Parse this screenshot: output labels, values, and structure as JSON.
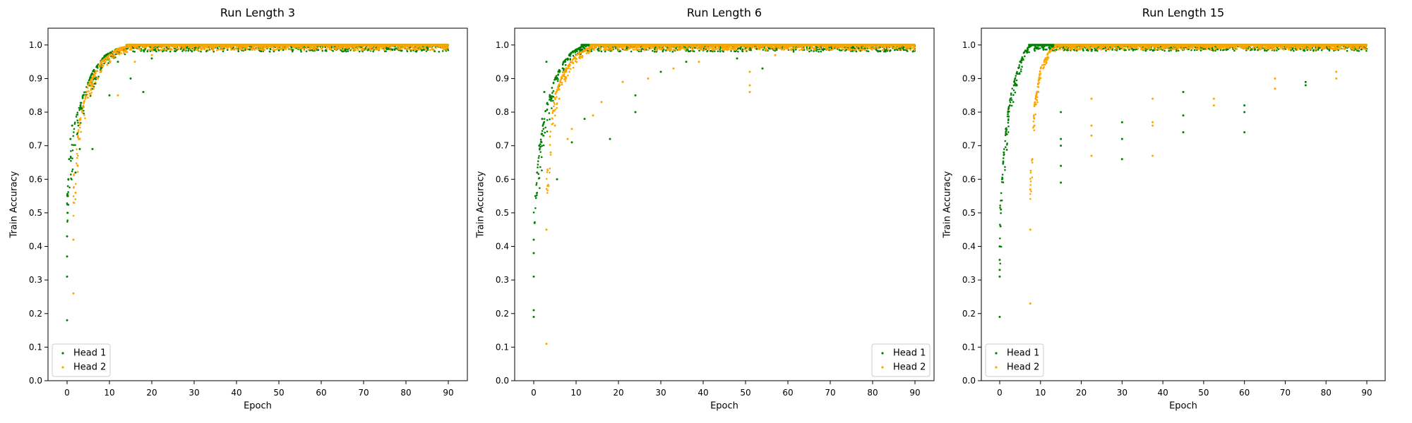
{
  "figure": {
    "colors": {
      "head1": "#008000",
      "head2": "#ffa500"
    }
  },
  "chart_data": [
    {
      "type": "scatter",
      "title": "Run Length 3",
      "xlabel": "Epoch",
      "ylabel": "Train Accuracy",
      "xlim": [
        -4.5,
        94.5
      ],
      "ylim": [
        0.0,
        1.05
      ],
      "xticks": [
        0,
        10,
        20,
        30,
        40,
        50,
        60,
        70,
        80,
        90
      ],
      "yticks": [
        0.0,
        0.1,
        0.2,
        0.3,
        0.4,
        0.5,
        0.6,
        0.7,
        0.8,
        0.9,
        1.0
      ],
      "legend": "lower-left",
      "series": [
        {
          "name": "Head 1",
          "color": "#008000",
          "points": [
            [
              0,
              0.18
            ],
            [
              0,
              0.31
            ],
            [
              0,
              0.37
            ],
            [
              0,
              0.43
            ],
            [
              0.1,
              0.5
            ],
            [
              0.2,
              0.55
            ],
            [
              0.3,
              0.6
            ],
            [
              0.5,
              0.66
            ],
            [
              0.8,
              0.72
            ],
            [
              1.2,
              0.76
            ],
            [
              2,
              0.62
            ],
            [
              3,
              0.69
            ],
            [
              3.5,
              0.81
            ],
            [
              4.5,
              0.86
            ],
            [
              6,
              0.69
            ],
            [
              6.5,
              0.9
            ],
            [
              8,
              0.93
            ],
            [
              10,
              0.85
            ],
            [
              12,
              0.95
            ],
            [
              15,
              0.9
            ],
            [
              18,
              0.86
            ],
            [
              20,
              0.96
            ],
            [
              24,
              0.99
            ]
          ],
          "fill": {
            "from": 0,
            "to": 90,
            "curve": [
              [
                0,
                0.55
              ],
              [
                1,
                0.7
              ],
              [
                2,
                0.78
              ],
              [
                4,
                0.86
              ],
              [
                6,
                0.92
              ],
              [
                9,
                0.97
              ],
              [
                12,
                0.99
              ],
              [
                16,
                1.0
              ],
              [
                90,
                1.0
              ]
            ],
            "spread": 0.1
          }
        },
        {
          "name": "Head 2",
          "color": "#ffa500",
          "points": [
            [
              1.5,
              0.26
            ],
            [
              1.5,
              0.42
            ],
            [
              2,
              0.56
            ],
            [
              2.5,
              0.64
            ],
            [
              3,
              0.72
            ],
            [
              4,
              0.83
            ],
            [
              6,
              0.88
            ],
            [
              8,
              0.92
            ],
            [
              12,
              0.85
            ],
            [
              16,
              0.95
            ],
            [
              20,
              0.97
            ],
            [
              26,
              0.99
            ]
          ],
          "fill": {
            "from": 1.5,
            "to": 90,
            "curve": [
              [
                1.5,
                0.6
              ],
              [
                3,
                0.78
              ],
              [
                5,
                0.88
              ],
              [
                8,
                0.95
              ],
              [
                12,
                0.99
              ],
              [
                16,
                1.0
              ],
              [
                90,
                1.0
              ]
            ],
            "spread": 0.08
          }
        }
      ]
    },
    {
      "type": "scatter",
      "title": "Run Length 6",
      "xlabel": "Epoch",
      "ylabel": "Train Accuracy",
      "xlim": [
        -4.5,
        94.5
      ],
      "ylim": [
        0.0,
        1.05
      ],
      "xticks": [
        0,
        10,
        20,
        30,
        40,
        50,
        60,
        70,
        80,
        90
      ],
      "yticks": [
        0.0,
        0.1,
        0.2,
        0.3,
        0.4,
        0.5,
        0.6,
        0.7,
        0.8,
        0.9,
        1.0
      ],
      "legend": "lower-right",
      "series": [
        {
          "name": "Head 1",
          "color": "#008000",
          "points": [
            [
              0,
              0.19
            ],
            [
              0,
              0.21
            ],
            [
              0,
              0.31
            ],
            [
              0,
              0.38
            ],
            [
              0,
              0.42
            ],
            [
              0.2,
              0.47
            ],
            [
              0.4,
              0.55
            ],
            [
              0.8,
              0.62
            ],
            [
              1.3,
              0.7
            ],
            [
              2,
              0.78
            ],
            [
              2.5,
              0.86
            ],
            [
              3,
              0.95
            ],
            [
              5.5,
              0.6
            ],
            [
              9,
              0.71
            ],
            [
              12,
              0.78
            ],
            [
              18,
              0.72
            ],
            [
              24,
              0.8
            ],
            [
              24,
              0.85
            ],
            [
              30,
              0.92
            ],
            [
              36,
              0.95
            ],
            [
              48,
              0.96
            ],
            [
              54,
              0.93
            ]
          ],
          "fill": {
            "from": 0,
            "to": 90,
            "curve": [
              [
                0,
                0.5
              ],
              [
                1,
                0.65
              ],
              [
                2,
                0.75
              ],
              [
                3,
                0.82
              ],
              [
                5,
                0.9
              ],
              [
                7,
                0.95
              ],
              [
                9,
                0.98
              ],
              [
                12,
                1.0
              ],
              [
                90,
                1.0
              ]
            ],
            "spread": 0.1
          }
        },
        {
          "name": "Head 2",
          "color": "#ffa500",
          "points": [
            [
              3,
              0.11
            ],
            [
              3,
              0.45
            ],
            [
              3.5,
              0.58
            ],
            [
              4,
              0.68
            ],
            [
              5,
              0.76
            ],
            [
              6,
              0.84
            ],
            [
              8,
              0.72
            ],
            [
              9,
              0.75
            ],
            [
              14,
              0.79
            ],
            [
              16,
              0.83
            ],
            [
              21,
              0.89
            ],
            [
              27,
              0.9
            ],
            [
              33,
              0.93
            ],
            [
              39,
              0.95
            ],
            [
              51,
              0.86
            ],
            [
              51,
              0.88
            ],
            [
              51,
              0.92
            ],
            [
              57,
              0.97
            ]
          ],
          "fill": {
            "from": 3,
            "to": 90,
            "curve": [
              [
                3,
                0.6
              ],
              [
                4,
                0.75
              ],
              [
                5,
                0.85
              ],
              [
                7,
                0.92
              ],
              [
                10,
                0.97
              ],
              [
                14,
                1.0
              ],
              [
                90,
                1.0
              ]
            ],
            "spread": 0.08
          }
        }
      ]
    },
    {
      "type": "scatter",
      "title": "Run Length 15",
      "xlabel": "Epoch",
      "ylabel": "Train Accuracy",
      "xlim": [
        -4.5,
        94.5
      ],
      "ylim": [
        0.0,
        1.05
      ],
      "xticks": [
        0,
        10,
        20,
        30,
        40,
        50,
        60,
        70,
        80,
        90
      ],
      "yticks": [
        0.0,
        0.1,
        0.2,
        0.3,
        0.4,
        0.5,
        0.6,
        0.7,
        0.8,
        0.9,
        1.0
      ],
      "legend": "lower-left",
      "series": [
        {
          "name": "Head 1",
          "color": "#008000",
          "points": [
            [
              0,
              0.19
            ],
            [
              0,
              0.31
            ],
            [
              0,
              0.33
            ],
            [
              0,
              0.36
            ],
            [
              0,
              0.4
            ],
            [
              0.2,
              0.46
            ],
            [
              0.3,
              0.51
            ],
            [
              0.6,
              0.6
            ],
            [
              1,
              0.68
            ],
            [
              1.5,
              0.75
            ],
            [
              2.5,
              0.82
            ],
            [
              3.5,
              0.88
            ],
            [
              5,
              0.95
            ],
            [
              15,
              0.59
            ],
            [
              15,
              0.64
            ],
            [
              15,
              0.7
            ],
            [
              15,
              0.72
            ],
            [
              15,
              0.8
            ],
            [
              30,
              0.66
            ],
            [
              30,
              0.72
            ],
            [
              30,
              0.77
            ],
            [
              45,
              0.74
            ],
            [
              45,
              0.79
            ],
            [
              45,
              0.86
            ],
            [
              60,
              0.74
            ],
            [
              60,
              0.8
            ],
            [
              60,
              0.82
            ],
            [
              75,
              0.88
            ],
            [
              75,
              0.89
            ]
          ],
          "fill": {
            "from": 0,
            "to": 90,
            "curve": [
              [
                0,
                0.5
              ],
              [
                1,
                0.68
              ],
              [
                2,
                0.8
              ],
              [
                3,
                0.87
              ],
              [
                4.5,
                0.93
              ],
              [
                6,
                0.98
              ],
              [
                7.5,
                1.0
              ],
              [
                90,
                1.0
              ]
            ],
            "spread": 0.09
          }
        },
        {
          "name": "Head 2",
          "color": "#ffa500",
          "points": [
            [
              7.5,
              0.23
            ],
            [
              7.5,
              0.45
            ],
            [
              7.5,
              0.57
            ],
            [
              8,
              0.66
            ],
            [
              8.5,
              0.76
            ],
            [
              9.5,
              0.86
            ],
            [
              22.5,
              0.67
            ],
            [
              22.5,
              0.73
            ],
            [
              22.5,
              0.76
            ],
            [
              22.5,
              0.84
            ],
            [
              37.5,
              0.67
            ],
            [
              37.5,
              0.76
            ],
            [
              37.5,
              0.77
            ],
            [
              37.5,
              0.84
            ],
            [
              52.5,
              0.82
            ],
            [
              52.5,
              0.84
            ],
            [
              67.5,
              0.87
            ],
            [
              67.5,
              0.9
            ],
            [
              82.5,
              0.9
            ],
            [
              82.5,
              0.92
            ]
          ],
          "fill": {
            "from": 7.5,
            "to": 90,
            "curve": [
              [
                7.5,
                0.6
              ],
              [
                8.5,
                0.82
              ],
              [
                10,
                0.93
              ],
              [
                12,
                0.98
              ],
              [
                14,
                1.0
              ],
              [
                90,
                1.0
              ]
            ],
            "spread": 0.07
          }
        }
      ]
    }
  ]
}
